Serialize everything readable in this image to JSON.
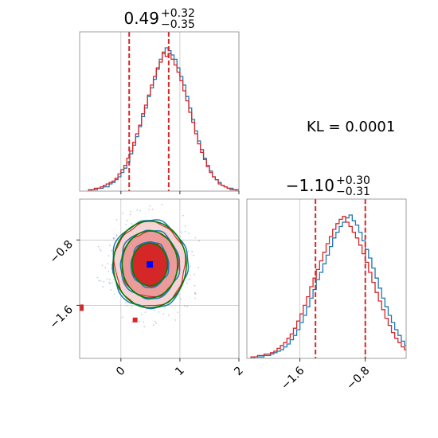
{
  "chart_data": {
    "type": "corner",
    "kl_annotation": "KL = 0.0001",
    "colors": {
      "posterior_a": "#1f77b4",
      "posterior_b": "#d62728",
      "gaussian_contour": "#008000",
      "truth_marker": "#0000ff",
      "quantile_line": "#d62728",
      "grid": "#b0b0b0"
    },
    "parameters": [
      {
        "index": 0,
        "title_median": "0.49",
        "title_plus": "+0.32",
        "title_minus": "−0.35",
        "median": 0.49,
        "q16": 0.14,
        "q84": 0.81,
        "range": [
          -0.7,
          2.0
        ],
        "ticks": [
          0,
          1,
          2
        ],
        "tick_labels": [
          "0",
          "1",
          "2"
        ],
        "histogram": {
          "bin_start": -0.55,
          "bin_width": 0.05,
          "series_a": [
            0,
            1,
            1,
            2,
            2,
            3,
            3,
            5,
            6,
            8,
            10,
            13,
            16,
            20,
            26,
            32,
            38,
            45,
            52,
            58,
            66,
            72,
            78,
            85,
            92,
            96,
            100,
            98,
            95,
            92,
            86,
            80,
            74,
            66,
            58,
            50,
            42,
            35,
            29,
            23,
            18,
            14,
            10,
            8,
            6,
            4,
            3,
            2,
            2,
            1,
            1,
            0
          ],
          "series_b": [
            1,
            1,
            2,
            2,
            3,
            4,
            5,
            6,
            7,
            9,
            12,
            15,
            18,
            23,
            28,
            34,
            40,
            46,
            54,
            60,
            67,
            74,
            80,
            86,
            90,
            97,
            94,
            96,
            92,
            88,
            83,
            77,
            70,
            63,
            55,
            48,
            40,
            33,
            27,
            22,
            17,
            13,
            10,
            8,
            5,
            4,
            3,
            2,
            1,
            1,
            0,
            0
          ]
        }
      },
      {
        "index": 1,
        "title_median": "−1.10",
        "title_plus": "+0.30",
        "title_minus": "−0.31",
        "median": -1.1,
        "q16": -1.41,
        "q84": -0.8,
        "range": [
          -2.25,
          -0.3
        ],
        "ticks": [
          -1.6,
          -0.8
        ],
        "tick_labels": [
          "−1.6",
          "−0.8"
        ],
        "histogram": {
          "bin_start": -2.2,
          "bin_width": 0.04,
          "series_a": [
            0,
            1,
            1,
            1,
            2,
            2,
            3,
            4,
            5,
            6,
            8,
            10,
            13,
            16,
            20,
            25,
            30,
            36,
            42,
            48,
            55,
            60,
            66,
            72,
            78,
            84,
            88,
            92,
            95,
            98,
            100,
            96,
            93,
            88,
            82,
            76,
            70,
            63,
            56,
            49,
            42,
            36,
            30,
            25,
            20,
            16,
            12,
            9,
            7,
            5,
            4,
            3,
            2,
            1,
            0
          ],
          "series_b": [
            1,
            1,
            2,
            2,
            3,
            3,
            4,
            5,
            7,
            9,
            11,
            14,
            17,
            21,
            26,
            31,
            37,
            43,
            50,
            56,
            62,
            68,
            74,
            80,
            85,
            90,
            94,
            97,
            99,
            95,
            92,
            88,
            84,
            79,
            73,
            67,
            60,
            53,
            46,
            40,
            34,
            28,
            23,
            18,
            14,
            11,
            8,
            6,
            4,
            3,
            2,
            1,
            1,
            0,
            0
          ]
        }
      }
    ],
    "joint": {
      "truth_marker": [
        0.49,
        -1.1
      ],
      "contours_a_sigma": [
        [
          0.32,
          0.28
        ],
        [
          0.5,
          0.42
        ],
        [
          0.64,
          0.54
        ]
      ],
      "contours_b_sigma": [
        [
          0.3,
          0.27
        ],
        [
          0.48,
          0.4
        ],
        [
          0.6,
          0.52
        ]
      ],
      "gaussian_sigma": [
        [
          0.3,
          0.26
        ],
        [
          0.47,
          0.41
        ],
        [
          0.62,
          0.53
        ]
      ]
    }
  }
}
